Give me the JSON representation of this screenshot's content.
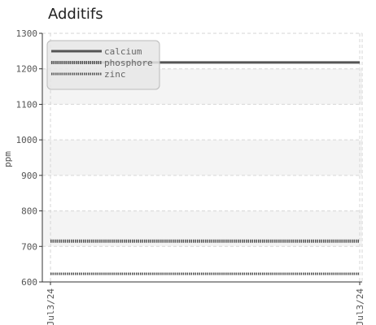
{
  "chart_data": {
    "type": "line",
    "title": "Additifs",
    "xlabel": "",
    "ylabel": "ppm",
    "x": [
      "Jul3/24",
      "Jul3/24"
    ],
    "ylim": [
      600,
      1300
    ],
    "yticks": [
      600,
      700,
      800,
      900,
      1000,
      1100,
      1200,
      1300
    ],
    "grid": true,
    "legend_position": "top-left",
    "series": [
      {
        "name": "calcium",
        "values": [
          1218,
          1218
        ],
        "color": "#555555",
        "style": "solid"
      },
      {
        "name": "phosphore",
        "values": [
          715,
          715
        ],
        "color": "#555555",
        "style": "dense-dotted"
      },
      {
        "name": "zinc",
        "values": [
          623,
          623
        ],
        "color": "#555555",
        "style": "dotted"
      }
    ]
  }
}
